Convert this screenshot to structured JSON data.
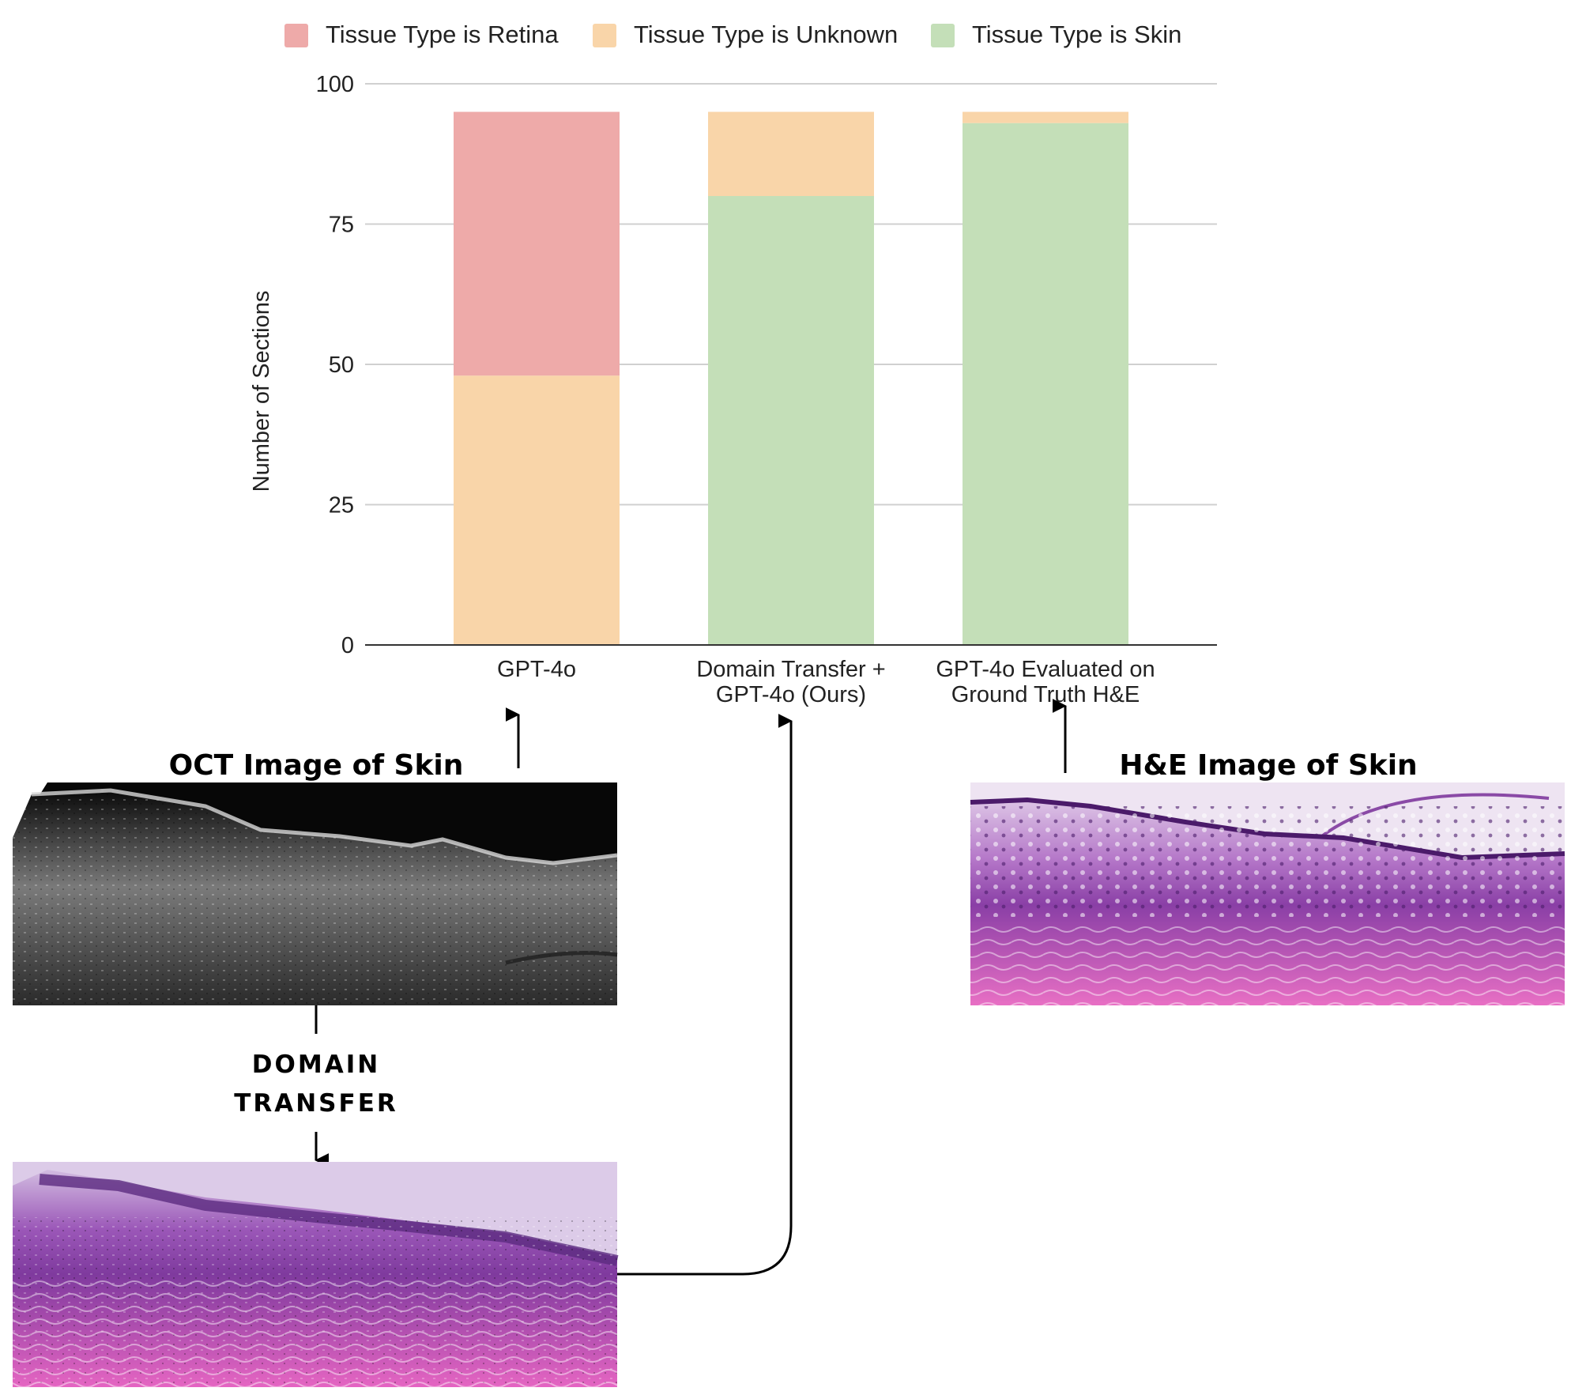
{
  "chart_data": {
    "type": "bar",
    "stacked": true,
    "categories": [
      [
        "GPT-4o"
      ],
      [
        "Domain Transfer +",
        "GPT-4o (Ours)"
      ],
      [
        "GPT-4o Evaluated on",
        "Ground Truth H&E"
      ]
    ],
    "series": [
      {
        "name": "Tissue Type is Skin",
        "color": "#c4dfb8",
        "values": [
          0,
          80,
          93
        ]
      },
      {
        "name": "Tissue Type is Unknown",
        "color": "#f9d5a9",
        "values": [
          48,
          15,
          2
        ]
      },
      {
        "name": "Tissue Type is Retina",
        "color": "#eeaaa9",
        "values": [
          47,
          0,
          0
        ]
      }
    ],
    "legend_order": [
      "Tissue Type is Retina",
      "Tissue Type is Unknown",
      "Tissue Type is Skin"
    ],
    "legend_position": "top",
    "ylabel": "Number of Sections",
    "ylim": [
      0,
      100
    ],
    "yticks": [
      0,
      25,
      50,
      75,
      100
    ],
    "grid": true
  },
  "panels": {
    "oct_title": "OCT Image of Skin",
    "he_title": "H&E Image of Skin",
    "transfer_line1": "DOMAIN",
    "transfer_line2": "TRANSFER"
  }
}
